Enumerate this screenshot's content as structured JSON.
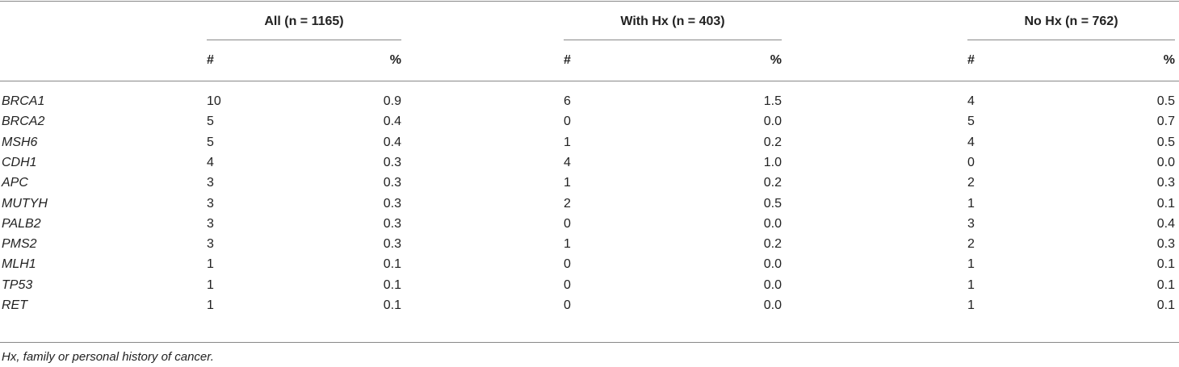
{
  "table": {
    "group_headers": [
      "All (n = 1165)",
      "With Hx (n = 403)",
      "No Hx (n = 762)"
    ],
    "subheaders": [
      "#",
      "%",
      "#",
      "%",
      "#",
      "%"
    ],
    "rows": [
      [
        "BRCA1",
        "10",
        "0.9",
        "6",
        "1.5",
        "4",
        "0.5"
      ],
      [
        "BRCA2",
        "5",
        "0.4",
        "0",
        "0.0",
        "5",
        "0.7"
      ],
      [
        "MSH6",
        "5",
        "0.4",
        "1",
        "0.2",
        "4",
        "0.5"
      ],
      [
        "CDH1",
        "4",
        "0.3",
        "4",
        "1.0",
        "0",
        "0.0"
      ],
      [
        "APC",
        "3",
        "0.3",
        "1",
        "0.2",
        "2",
        "0.3"
      ],
      [
        "MUTYH",
        "3",
        "0.3",
        "2",
        "0.5",
        "1",
        "0.1"
      ],
      [
        "PALB2",
        "3",
        "0.3",
        "0",
        "0.0",
        "3",
        "0.4"
      ],
      [
        "PMS2",
        "3",
        "0.3",
        "1",
        "0.2",
        "2",
        "0.3"
      ],
      [
        "MLH1",
        "1",
        "0.1",
        "0",
        "0.0",
        "1",
        "0.1"
      ],
      [
        "TP53",
        "1",
        "0.1",
        "0",
        "0.0",
        "1",
        "0.1"
      ],
      [
        "RET",
        "1",
        "0.1",
        "0",
        "0.0",
        "1",
        "0.1"
      ]
    ]
  },
  "footnote": "Hx, family or personal history of cancer."
}
